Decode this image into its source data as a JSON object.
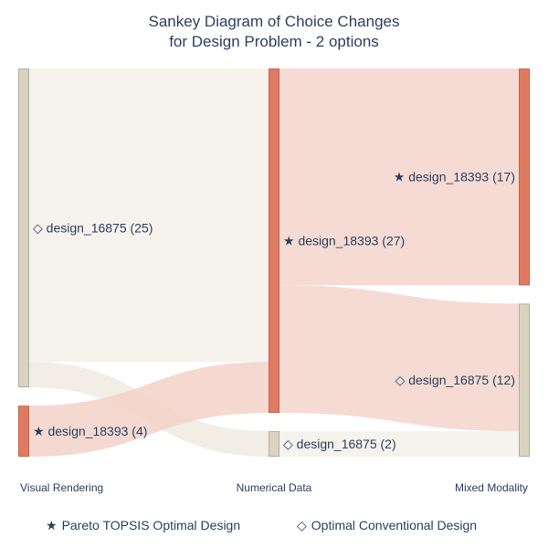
{
  "chart_data": {
    "type": "sankey",
    "title": [
      "Sankey Diagram of Choice Changes",
      "for Design Problem - 2 options"
    ],
    "stages": [
      "Visual Rendering",
      "Numerical Data",
      "Mixed Modality"
    ],
    "nodes": [
      {
        "id": "vr_16875",
        "stage": 0,
        "label": "◇ design_16875 (25)",
        "value": 25,
        "color": "#dbd3c1",
        "edge": "#b7ad97"
      },
      {
        "id": "vr_18393",
        "stage": 0,
        "label": "★ design_18393 (4)",
        "value": 4,
        "color": "#e07b63",
        "edge": "#c4624b"
      },
      {
        "id": "nd_18393",
        "stage": 1,
        "label": "★ design_18393 (27)",
        "value": 27,
        "color": "#e07b63",
        "edge": "#c4624b"
      },
      {
        "id": "nd_16875",
        "stage": 1,
        "label": "◇ design_16875 (2)",
        "value": 2,
        "color": "#dbd3c1",
        "edge": "#b7ad97"
      },
      {
        "id": "mm_18393",
        "stage": 2,
        "label": "★ design_18393 (17)",
        "value": 17,
        "color": "#e07b63",
        "edge": "#c4624b"
      },
      {
        "id": "mm_16875",
        "stage": 2,
        "label": "◇ design_16875 (12)",
        "value": 12,
        "color": "#dbd3c1",
        "edge": "#b7ad97"
      }
    ],
    "links": [
      {
        "source": "vr_16875",
        "target": "nd_18393",
        "value": 23,
        "color": "#f4efe7"
      },
      {
        "source": "vr_16875",
        "target": "nd_16875",
        "value": 2,
        "color": "#efe9df"
      },
      {
        "source": "vr_18393",
        "target": "nd_18393",
        "value": 4,
        "color": "#f3cfc5"
      },
      {
        "source": "nd_18393",
        "target": "mm_18393",
        "value": 17,
        "color": "#f3d2c8"
      },
      {
        "source": "nd_18393",
        "target": "mm_16875",
        "value": 10,
        "color": "#f3d2c8"
      },
      {
        "source": "nd_16875",
        "target": "mm_16875",
        "value": 2,
        "color": "#f4efe7"
      }
    ],
    "legend": [
      {
        "symbol": "★",
        "text": "Pareto TOPSIS Optimal Design"
      },
      {
        "symbol": "◇",
        "text": "Optimal Conventional Design"
      }
    ]
  }
}
